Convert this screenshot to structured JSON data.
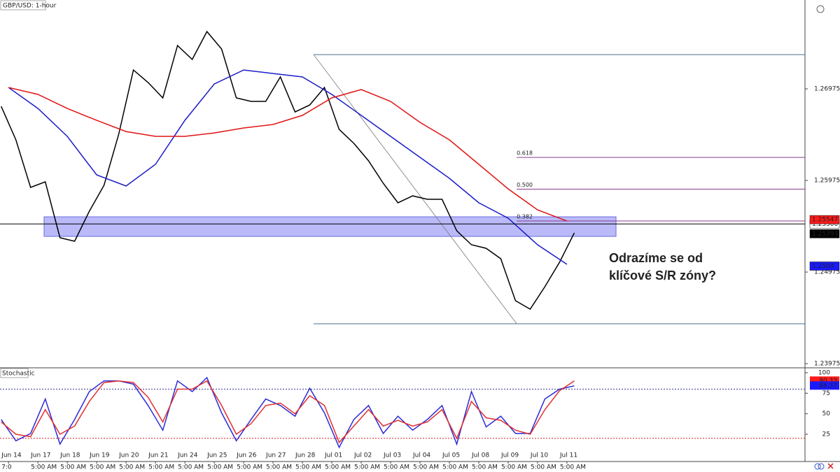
{
  "chart_data": {
    "type": "line",
    "title": "GBP/USD: 1-hour",
    "xlim": [
      -0.29,
      27.1
    ],
    "ylim": [
      1.23937,
      1.27945
    ],
    "yticks": [
      1.26975,
      1.25975,
      1.24975,
      1.23975
    ],
    "xticks": [
      {
        "value": 0,
        "label": "Jun 14"
      },
      {
        "value": 1,
        "label": "Jun 17"
      },
      {
        "value": 2,
        "label": "Jun 18"
      },
      {
        "value": 3,
        "label": "Jun 19"
      },
      {
        "value": 4,
        "label": "Jun 20"
      },
      {
        "value": 5,
        "label": "Jun 21"
      },
      {
        "value": 6,
        "label": "Jun 24"
      },
      {
        "value": 7,
        "label": "Jun 25"
      },
      {
        "value": 8,
        "label": "Jun 26"
      },
      {
        "value": 9,
        "label": "Jun 27"
      },
      {
        "value": 10,
        "label": "Jun 28"
      },
      {
        "value": 11,
        "label": "Jul 01"
      },
      {
        "value": 12,
        "label": "Jul 02"
      },
      {
        "value": 13,
        "label": "Jul 03"
      },
      {
        "value": 14,
        "label": "Jul 04"
      },
      {
        "value": 15,
        "label": "Jul 05"
      },
      {
        "value": 16,
        "label": "Jul 08"
      },
      {
        "value": 17,
        "label": "Jul 09"
      },
      {
        "value": 18,
        "label": "Jul 10"
      },
      {
        "value": 19,
        "label": "Jul 11"
      }
    ],
    "xticks_time": [
      "7:0",
      "5:00 AM",
      "5:00 AM",
      "5:00 AM",
      "5:00 AM",
      "5:00 AM",
      "5:00 AM",
      "5:00 AM",
      "5:00 AM",
      "5:00 AM",
      "5:00 AM",
      "5:00 AM",
      "5:00 AM",
      "5:00 AM",
      "5:00 AM",
      "5:00 AM",
      "5:00 AM",
      "5:00 AM",
      "5:00 AM",
      "5:00 AM"
    ],
    "series": [
      {
        "color": "#000000",
        "x": [
          -0.25,
          0.25,
          0.75,
          1.25,
          1.75,
          2.25,
          2.75,
          3.25,
          3.75,
          4.25,
          4.75,
          5.25,
          5.75,
          6.25,
          6.75,
          7.25,
          7.75,
          8.25,
          8.75,
          9.25,
          9.75,
          10.25,
          10.75,
          11.25,
          11.75,
          12.25,
          12.75,
          13.25,
          13.75,
          14.25,
          14.75,
          15.25,
          15.75,
          16.25,
          16.75,
          17.25,
          17.75,
          18.25,
          18.75,
          19.25
        ],
        "values": [
          1.26784,
          1.26418,
          1.25899,
          1.2596,
          1.25349,
          1.25311,
          1.25639,
          1.25922,
          1.26479,
          1.27181,
          1.27044,
          1.26876,
          1.27448,
          1.27296,
          1.27601,
          1.2741,
          1.26876,
          1.26838,
          1.26838,
          1.27105,
          1.26723,
          1.26799,
          1.2699,
          1.26532,
          1.2638,
          1.26189,
          1.25944,
          1.25731,
          1.25807,
          1.25769,
          1.25769,
          1.25425,
          1.25273,
          1.25234,
          1.2512,
          1.24662,
          1.2457,
          1.24815,
          1.25082,
          1.25402
        ]
      },
      {
        "color": "#1c1cc8",
        "x": [
          0,
          1,
          2,
          3,
          4,
          5,
          6,
          7,
          8,
          9,
          10,
          11,
          12,
          13,
          14,
          15,
          16,
          17,
          18,
          19
        ],
        "values": [
          1.2699,
          1.26761,
          1.26456,
          1.26036,
          1.25914,
          1.26151,
          1.26631,
          1.27028,
          1.27181,
          1.27143,
          1.27105,
          1.26914,
          1.26685,
          1.26456,
          1.26227,
          1.25998,
          1.25731,
          1.25563,
          1.25273,
          1.25059
        ]
      },
      {
        "color": "#e01414",
        "x": [
          0,
          1,
          2,
          3,
          4,
          5,
          6,
          7,
          8,
          9,
          10,
          11,
          12,
          13,
          14,
          15,
          16,
          17,
          18,
          19
        ],
        "values": [
          1.2699,
          1.26914,
          1.26761,
          1.26631,
          1.26509,
          1.26456,
          1.26456,
          1.26494,
          1.26548,
          1.26586,
          1.26685,
          1.26876,
          1.26967,
          1.26838,
          1.26609,
          1.26418,
          1.26151,
          1.25883,
          1.25654,
          1.25532
        ]
      }
    ],
    "price_tags": [
      {
        "value": 1.255,
        "label": "1.25500",
        "color": "#ffffff",
        "line": true
      },
      {
        "value": 1.25547,
        "color": "#ff1a1a"
      },
      {
        "value": 1.25393,
        "color": "#000000"
      },
      {
        "value": 1.2504,
        "color": "#1a1aff"
      }
    ],
    "swing": {
      "x": [
        10.38,
        17.29
      ],
      "values": [
        1.27349,
        1.2441
      ],
      "color": "#4a6f8a"
    },
    "fib_ratios": [
      0.618,
      {
        "value": 0.5,
        "label": "0.500"
      },
      0.382
    ],
    "fib_color": "#8b3a8b",
    "zone": {
      "x": [
        1.21,
        20.67
      ],
      "values": [
        1.25578,
        1.25364
      ],
      "color": "#8c8cf5"
    },
    "annotation": [
      "Odrazíme se od",
      "klíčové S/R zóny?"
    ],
    "stochastic": {
      "title": "Stochastic",
      "ylim": [
        -8.2,
        105.1
      ],
      "yticks": [
        25,
        50,
        75,
        100
      ],
      "levels": [
        {
          "value": 80,
          "color": "#3a3a9a"
        },
        {
          "value": 20,
          "color": "#d02020"
        }
      ],
      "series": [
        {
          "color": "#2b2bd6",
          "values": [
            43,
            17,
            26,
            68,
            13,
            43,
            77,
            90,
            90,
            86,
            60,
            30,
            90,
            77,
            94,
            51,
            17,
            43,
            68,
            60,
            47,
            81,
            51,
            9,
            43,
            60,
            26,
            47,
            30,
            43,
            60,
            13,
            77,
            34,
            47,
            26,
            26,
            68,
            80,
            84
          ]
        },
        {
          "color": "#e03030",
          "values": [
            40,
            25,
            22,
            55,
            25,
            35,
            65,
            88,
            90,
            88,
            70,
            40,
            80,
            80,
            90,
            60,
            25,
            38,
            60,
            63,
            50,
            72,
            60,
            15,
            35,
            55,
            35,
            42,
            35,
            40,
            55,
            20,
            65,
            45,
            42,
            30,
            25,
            55,
            78,
            90
          ]
        }
      ],
      "tags": [
        {
          "value": 90.33,
          "color": "#ff1a1a"
        },
        {
          "value": 84.37,
          "color": "#1a1aff"
        }
      ]
    }
  }
}
